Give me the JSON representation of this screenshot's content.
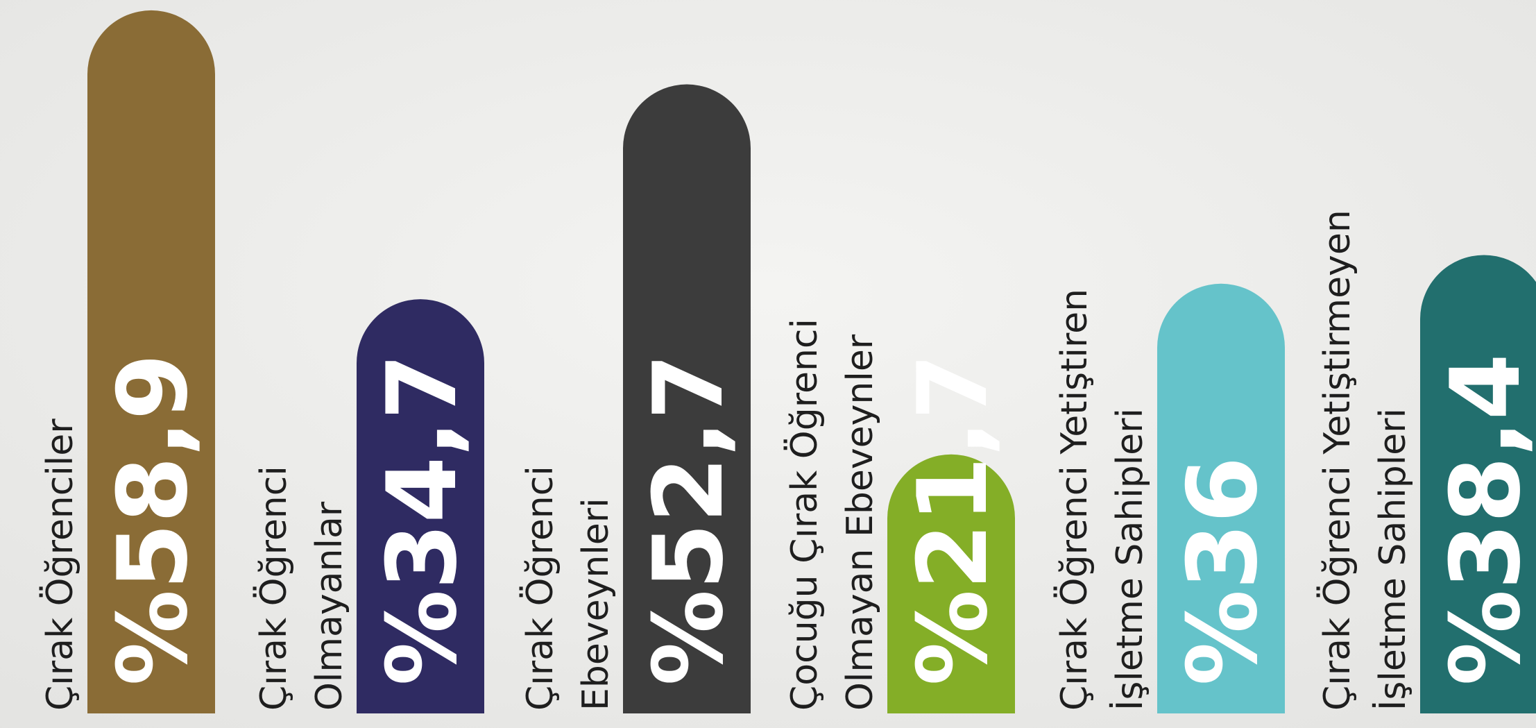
{
  "chart_data": {
    "type": "bar",
    "categories": [
      [
        "Çırak Öğrenciler"
      ],
      [
        "Çırak Öğrenci",
        "Olmayanlar"
      ],
      [
        "Çırak Öğrenci",
        "Ebeveynleri"
      ],
      [
        "Çocuğu Çırak Öğrenci",
        "Olmayan Ebeveynler"
      ],
      [
        "Çırak Öğrenci Yetiştiren",
        "İşletme Sahipleri"
      ],
      [
        "Çırak Öğrenci Yetiştirmeyen",
        "İşletme Sahipleri"
      ]
    ],
    "values": [
      58.9,
      34.7,
      52.7,
      21.7,
      36,
      38.4
    ],
    "value_labels": [
      "%58,9",
      "%34,7",
      "%52,7",
      "%21,7",
      "%36",
      "%38,4"
    ],
    "colors": [
      "#8a6c36",
      "#2f2b62",
      "#3c3c3c",
      "#84ae27",
      "#65c3ca",
      "#226f6e"
    ]
  }
}
